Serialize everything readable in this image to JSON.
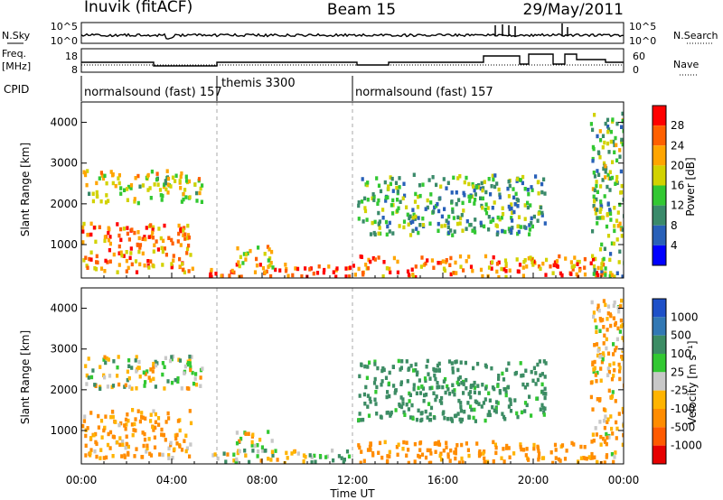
{
  "header": {
    "station": "Inuvik (fitACF)",
    "beam": "Beam 15",
    "date": "29/May/2011"
  },
  "noise_panel": {
    "left_label": "N.Sky",
    "left_ticks": [
      "10^5",
      "10^0"
    ],
    "right_ticks": [
      "10^5",
      "10^0"
    ],
    "right_label": "N.Search"
  },
  "freq_panel": {
    "left_label_1": "Freq.",
    "left_label_2": "[MHz]",
    "left_ticks": [
      "18",
      "8"
    ],
    "right_ticks": [
      "60",
      "0"
    ],
    "right_label": "Nave"
  },
  "cpid": {
    "label": "CPID",
    "segments": [
      "normalsound (fast) 157",
      "themis 3300",
      "normalsound (fast) 157"
    ]
  },
  "colors": {
    "power_scale": [
      "#0000ff",
      "#2860b8",
      "#3a8a6a",
      "#32c832",
      "#d2d200",
      "#ffa500",
      "#ff6000",
      "#ff0000"
    ],
    "velocity_scale": [
      "#e60000",
      "#ff5a00",
      "#ff8c00",
      "#ffb400",
      "#c8c8c8",
      "#32c832",
      "#3c8c64",
      "#3278b4",
      "#1e50c8"
    ]
  },
  "chart_data": [
    {
      "type": "heatmap",
      "title": "Power",
      "ylabel": "Slant Range [km]",
      "xlabel": "",
      "ylim": [
        180,
        4500
      ],
      "y_ticks": [
        "4000",
        "3000",
        "2000",
        "1000"
      ],
      "colorbar": {
        "label": "Power [dB]",
        "ticks": [
          "28",
          "24",
          "20",
          "16",
          "12",
          "8",
          "4"
        ],
        "range": [
          0,
          32
        ]
      },
      "marked_times_hours": [
        6,
        12
      ],
      "echo_regions": [
        {
          "t0": 0.0,
          "t1": 4.9,
          "r0": 300,
          "r1": 1500,
          "value_db": 24
        },
        {
          "t0": 0.0,
          "t1": 5.3,
          "r0": 2000,
          "r1": 2800,
          "value_db": 18
        },
        {
          "t0": 5.6,
          "t1": 12.2,
          "r0": 180,
          "r1": 500,
          "value_db": 28
        },
        {
          "t0": 6.8,
          "t1": 8.5,
          "r0": 400,
          "r1": 950,
          "value_db": 20
        },
        {
          "t0": 12.2,
          "t1": 23.2,
          "r0": 180,
          "r1": 700,
          "value_db": 24
        },
        {
          "t0": 12.2,
          "t1": 20.5,
          "r0": 1200,
          "r1": 2700,
          "value_db": 12
        },
        {
          "t0": 22.5,
          "t1": 24.0,
          "r0": 180,
          "r1": 4200,
          "value_db": 14
        }
      ]
    },
    {
      "type": "heatmap",
      "title": "Velocity",
      "ylabel": "Slant Range [km]",
      "xlabel": "Time UT",
      "ylim": [
        180,
        4500
      ],
      "y_ticks": [
        "4000",
        "3000",
        "2000",
        "1000"
      ],
      "x_ticks": [
        "00:00",
        "04:00",
        "08:00",
        "12:00",
        "16:00",
        "20:00",
        "00:00"
      ],
      "colorbar": {
        "label": "Velocity [m s⁻¹]",
        "ticks": [
          "1000",
          "500",
          "100",
          "25",
          "-25",
          "-100",
          "-500",
          "-1000"
        ],
        "range": [
          -1000,
          1000
        ]
      },
      "marked_times_hours": [
        6,
        12
      ],
      "echo_regions": [
        {
          "t0": 0.0,
          "t1": 4.9,
          "r0": 300,
          "r1": 1500,
          "value_ms": -150
        },
        {
          "t0": 0.0,
          "t1": 5.3,
          "r0": 2000,
          "r1": 2800,
          "value_ms": 0
        },
        {
          "t0": 5.6,
          "t1": 12.2,
          "r0": 180,
          "r1": 500,
          "value_ms": 30
        },
        {
          "t0": 6.8,
          "t1": 8.5,
          "r0": 400,
          "r1": 950,
          "value_ms": 0
        },
        {
          "t0": 12.2,
          "t1": 23.2,
          "r0": 180,
          "r1": 700,
          "value_ms": -200
        },
        {
          "t0": 12.2,
          "t1": 20.5,
          "r0": 1200,
          "r1": 2700,
          "value_ms": 200
        },
        {
          "t0": 22.5,
          "t1": 24.0,
          "r0": 180,
          "r1": 4200,
          "value_ms": -100
        }
      ]
    }
  ]
}
